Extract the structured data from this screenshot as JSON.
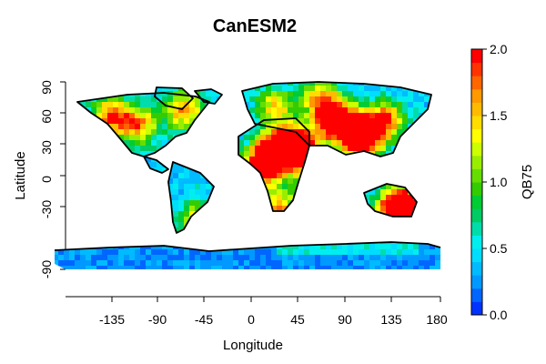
{
  "title": "CanESM2",
  "x_axis": {
    "label": "Longitude",
    "ticks": [
      "-135",
      "-90",
      "-45",
      "0",
      "45",
      "90",
      "135",
      "180"
    ]
  },
  "y_axis": {
    "label": "Latitude",
    "ticks": [
      "-90",
      "-30",
      "0",
      "30",
      "60",
      "90"
    ]
  },
  "colorbar": {
    "label": "QB75",
    "ticks": [
      "0.0",
      "0.5",
      "1.0",
      "1.5",
      "2.0"
    ],
    "range": [
      0,
      2
    ],
    "colors": [
      "#0033ff",
      "#0066ff",
      "#0099ff",
      "#00bbff",
      "#00ddff",
      "#00eeee",
      "#00ddaa",
      "#00cc66",
      "#00cc33",
      "#33cc00",
      "#66dd00",
      "#99ee00",
      "#ccff00",
      "#ffff00",
      "#ffdd00",
      "#ffbb00",
      "#ff9900",
      "#ff6600",
      "#ff3300",
      "#ff0000"
    ]
  },
  "map": {
    "projection": "longitude-latitude",
    "ocean_color": "#ffffff",
    "coastline_color": "#000000"
  }
}
